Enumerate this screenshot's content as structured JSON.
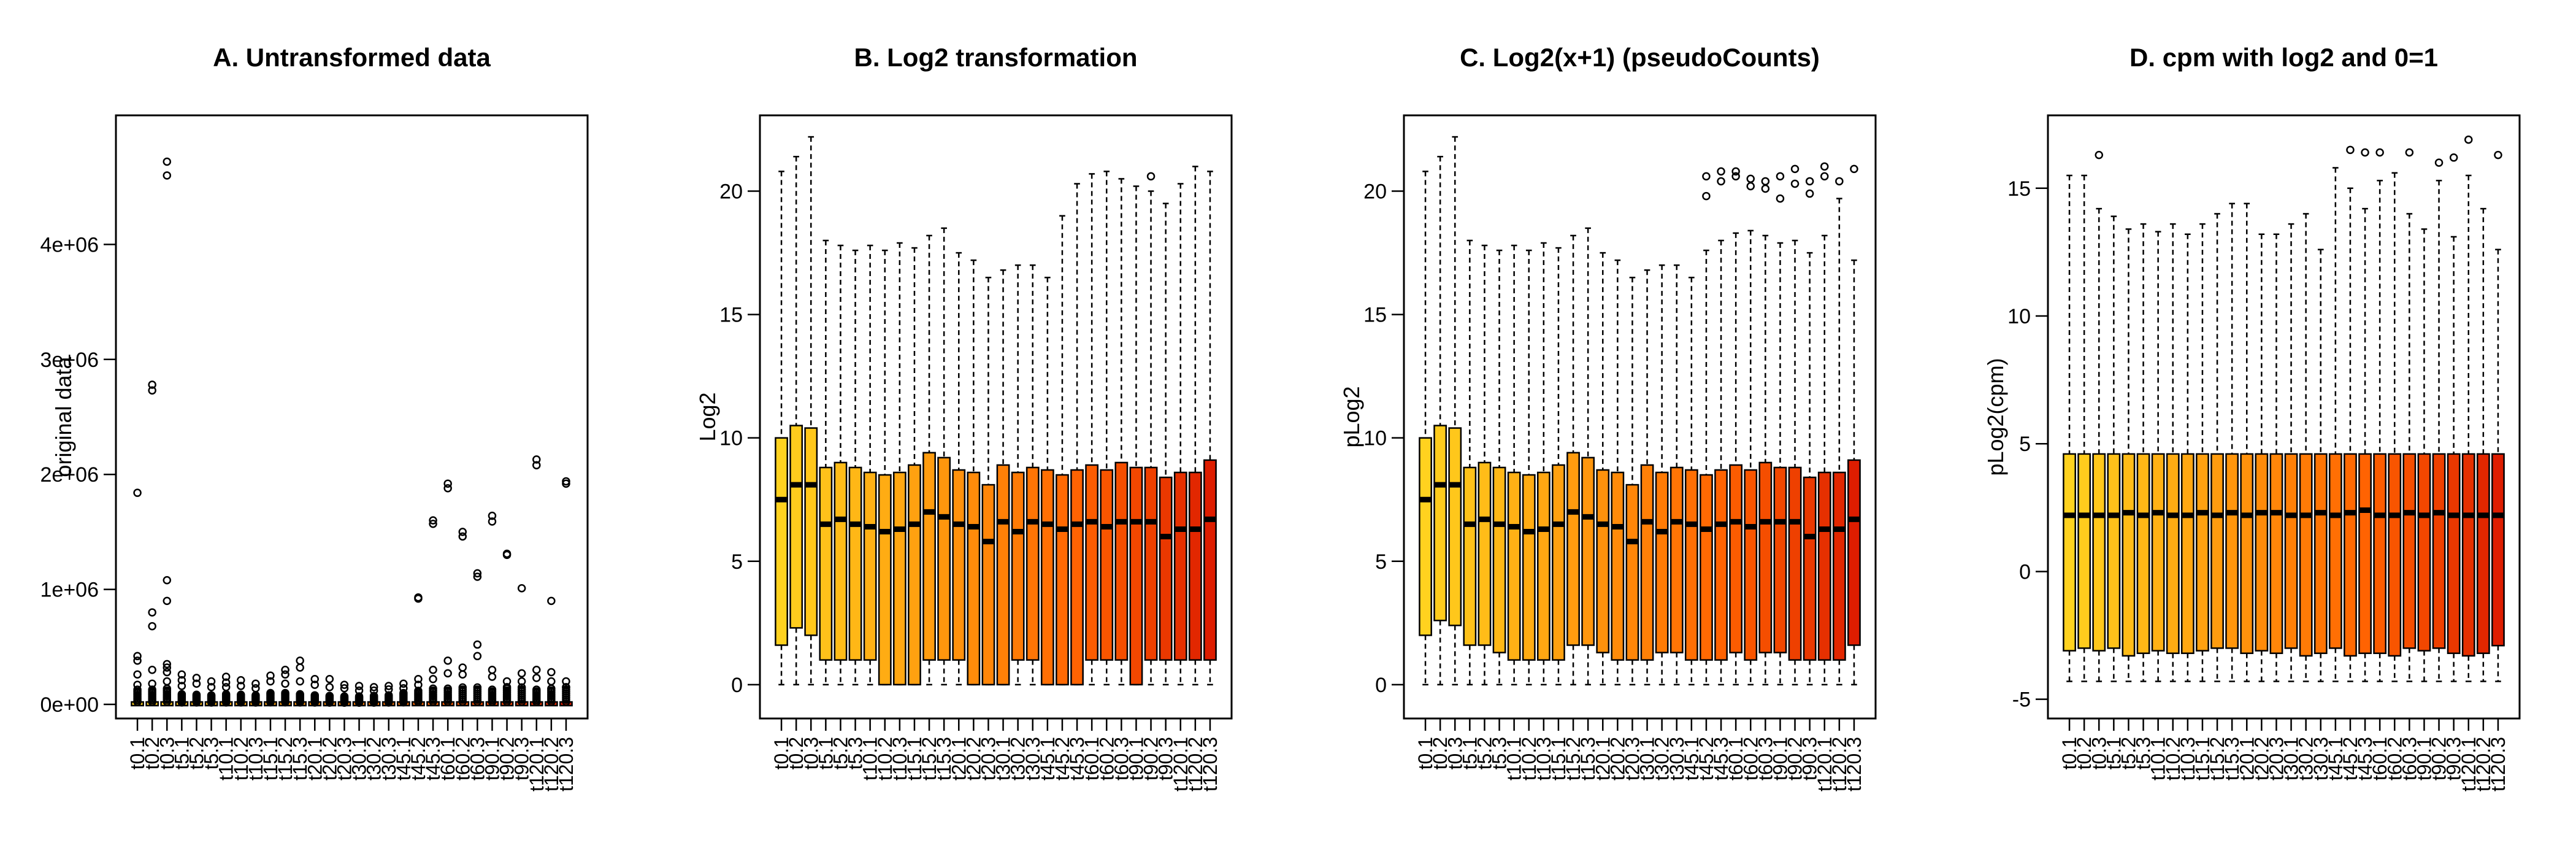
{
  "chart_data": [
    {
      "type": "boxplot",
      "title": "A. Untransformed data",
      "ylabel": "original data",
      "xlabel": "",
      "ylim": [
        0,
        5000000
      ],
      "yticks": [
        0,
        1000000,
        2000000,
        3000000,
        4000000
      ],
      "ytick_labels": [
        "0e+00",
        "1e+06",
        "2e+06",
        "3e+06",
        "4e+06"
      ],
      "categories": [
        "t0.1",
        "t0.2",
        "t0.3",
        "t5.1",
        "t5.2",
        "t5.3",
        "t10.1",
        "t10.2",
        "t10.3",
        "t15.1",
        "t15.2",
        "t15.3",
        "t20.1",
        "t20.2",
        "t20.3",
        "t30.1",
        "t30.2",
        "t30.3",
        "t45.1",
        "t45.2",
        "t45.3",
        "t60.1",
        "t60.2",
        "t60.3",
        "t90.1",
        "t90.2",
        "t90.3",
        "t120.1",
        "t120.2",
        "t120.3"
      ],
      "whisker_max": [
        130000,
        130000,
        140000,
        90000,
        85000,
        80000,
        90000,
        85000,
        80000,
        100000,
        100000,
        90000,
        80000,
        75000,
        70000,
        70000,
        75000,
        80000,
        100000,
        120000,
        140000,
        140000,
        150000,
        150000,
        130000,
        140000,
        150000,
        130000,
        140000,
        150000
      ],
      "outliers": [
        [
          1840000,
          420000,
          380000,
          260000,
          170000
        ],
        [
          2780000,
          2730000,
          800000,
          680000,
          300000,
          180000
        ],
        [
          4720000,
          4600000,
          1080000,
          900000,
          350000,
          320000,
          280000,
          200000
        ],
        [
          260000,
          210000,
          160000
        ],
        [
          230000,
          180000
        ],
        [
          200000,
          150000
        ],
        [
          240000,
          190000,
          150000
        ],
        [
          210000,
          160000
        ],
        [
          180000,
          140000
        ],
        [
          250000,
          200000
        ],
        [
          300000,
          260000,
          180000
        ],
        [
          380000,
          320000,
          200000
        ],
        [
          220000,
          170000
        ],
        [
          220000,
          150000
        ],
        [
          170000,
          140000
        ],
        [
          160000,
          120000
        ],
        [
          150000,
          120000
        ],
        [
          160000,
          130000
        ],
        [
          180000,
          140000
        ],
        [
          930000,
          920000,
          220000,
          170000
        ],
        [
          1600000,
          1570000,
          300000,
          220000
        ],
        [
          1920000,
          1880000,
          380000,
          270000
        ],
        [
          1500000,
          1460000,
          320000,
          260000
        ],
        [
          1140000,
          1110000,
          520000,
          420000
        ],
        [
          1640000,
          1590000,
          300000,
          240000
        ],
        [
          1310000,
          1300000,
          200000,
          150000
        ],
        [
          1010000,
          270000,
          200000
        ],
        [
          2130000,
          2080000,
          300000,
          230000
        ],
        [
          900000,
          280000,
          200000
        ],
        [
          1940000,
          1920000,
          200000,
          150000
        ]
      ]
    },
    {
      "type": "boxplot",
      "title": "B. Log2 transformation",
      "ylabel": "Log2",
      "xlabel": "",
      "ylim": [
        -0.8,
        22.5
      ],
      "yticks": [
        0,
        5,
        10,
        15,
        20
      ],
      "ytick_labels": [
        "0",
        "5",
        "10",
        "15",
        "20"
      ],
      "categories": [
        "t0.1",
        "t0.2",
        "t0.3",
        "t5.1",
        "t5.2",
        "t5.3",
        "t10.1",
        "t10.2",
        "t10.3",
        "t15.1",
        "t15.2",
        "t15.3",
        "t20.1",
        "t20.2",
        "t20.3",
        "t30.1",
        "t30.2",
        "t30.3",
        "t45.1",
        "t45.2",
        "t45.3",
        "t60.1",
        "t60.2",
        "t60.3",
        "t90.1",
        "t90.2",
        "t90.3",
        "t120.1",
        "t120.2",
        "t120.3"
      ],
      "whisker_low": [
        0,
        0,
        0,
        0,
        0,
        0,
        0,
        0,
        0,
        0,
        0,
        0,
        0,
        0,
        0,
        0,
        0,
        0,
        0,
        0,
        0,
        0,
        0,
        0,
        0,
        0,
        0,
        0,
        0,
        0
      ],
      "q1": [
        1.6,
        2.3,
        2.0,
        1.0,
        1.0,
        1.0,
        1.0,
        0,
        0,
        0,
        1.0,
        1.0,
        1.0,
        0,
        0,
        0,
        1.0,
        1.0,
        0,
        0,
        0,
        1.0,
        1.0,
        1.0,
        0,
        1.0,
        1.0,
        1.0,
        1.0,
        1.0
      ],
      "median": [
        7.5,
        8.1,
        8.1,
        6.5,
        6.7,
        6.5,
        6.4,
        6.2,
        6.3,
        6.5,
        7.0,
        6.8,
        6.5,
        6.4,
        5.8,
        6.6,
        6.2,
        6.6,
        6.5,
        6.3,
        6.5,
        6.6,
        6.4,
        6.6,
        6.6,
        6.6,
        6.0,
        6.3,
        6.3,
        6.7
      ],
      "q3": [
        10.0,
        10.5,
        10.4,
        8.8,
        9.0,
        8.8,
        8.6,
        8.5,
        8.6,
        8.9,
        9.4,
        9.2,
        8.7,
        8.6,
        8.1,
        8.9,
        8.6,
        8.8,
        8.7,
        8.5,
        8.7,
        8.9,
        8.7,
        9.0,
        8.8,
        8.8,
        8.4,
        8.6,
        8.6,
        9.1
      ],
      "whisker_high": [
        20.8,
        21.4,
        22.2,
        18.0,
        17.8,
        17.6,
        17.8,
        17.6,
        17.9,
        17.7,
        18.2,
        18.5,
        17.5,
        17.2,
        16.5,
        16.8,
        17.0,
        17.0,
        16.5,
        19.0,
        20.3,
        20.7,
        20.8,
        20.5,
        20.2,
        20.0,
        19.5,
        20.3,
        21.0,
        20.8
      ],
      "outliers": [
        [],
        [],
        [],
        [],
        [],
        [],
        [],
        [],
        [],
        [],
        [],
        [],
        [],
        [],
        [],
        [],
        [],
        [],
        [],
        [],
        [],
        [],
        [],
        [],
        [],
        [
          20.6
        ],
        [],
        [],
        [],
        []
      ]
    },
    {
      "type": "boxplot",
      "title": "C. Log2(x+1) (pseudoCounts)",
      "ylabel": "pLog2",
      "xlabel": "",
      "ylim": [
        -0.8,
        22.5
      ],
      "yticks": [
        0,
        5,
        10,
        15,
        20
      ],
      "ytick_labels": [
        "0",
        "5",
        "10",
        "15",
        "20"
      ],
      "categories": [
        "t0.1",
        "t0.2",
        "t0.3",
        "t5.1",
        "t5.2",
        "t5.3",
        "t10.1",
        "t10.2",
        "t10.3",
        "t15.1",
        "t15.2",
        "t15.3",
        "t20.1",
        "t20.2",
        "t20.3",
        "t30.1",
        "t30.2",
        "t30.3",
        "t45.1",
        "t45.2",
        "t45.3",
        "t60.1",
        "t60.2",
        "t60.3",
        "t90.1",
        "t90.2",
        "t90.3",
        "t120.1",
        "t120.2",
        "t120.3"
      ],
      "whisker_low": [
        0,
        0,
        0,
        0,
        0,
        0,
        0,
        0,
        0,
        0,
        0,
        0,
        0,
        0,
        0,
        0,
        0,
        0,
        0,
        0,
        0,
        0,
        0,
        0,
        0,
        0,
        0,
        0,
        0,
        0
      ],
      "q1": [
        2.0,
        2.6,
        2.4,
        1.6,
        1.6,
        1.3,
        1.0,
        1.0,
        1.0,
        1.0,
        1.6,
        1.6,
        1.3,
        1.0,
        1.0,
        1.0,
        1.3,
        1.3,
        1.0,
        1.0,
        1.0,
        1.3,
        1.0,
        1.3,
        1.3,
        1.0,
        1.0,
        1.0,
        1.0,
        1.6
      ],
      "median": [
        7.5,
        8.1,
        8.1,
        6.5,
        6.7,
        6.5,
        6.4,
        6.2,
        6.3,
        6.5,
        7.0,
        6.8,
        6.5,
        6.4,
        5.8,
        6.6,
        6.2,
        6.6,
        6.5,
        6.3,
        6.5,
        6.6,
        6.4,
        6.6,
        6.6,
        6.6,
        6.0,
        6.3,
        6.3,
        6.7
      ],
      "q3": [
        10.0,
        10.5,
        10.4,
        8.8,
        9.0,
        8.8,
        8.6,
        8.5,
        8.6,
        8.9,
        9.4,
        9.2,
        8.7,
        8.6,
        8.1,
        8.9,
        8.6,
        8.8,
        8.7,
        8.5,
        8.7,
        8.9,
        8.7,
        9.0,
        8.8,
        8.8,
        8.4,
        8.6,
        8.6,
        9.1
      ],
      "whisker_high": [
        20.8,
        21.4,
        22.2,
        18.0,
        17.8,
        17.6,
        17.8,
        17.6,
        17.9,
        17.7,
        18.2,
        18.5,
        17.5,
        17.2,
        16.5,
        16.8,
        17.0,
        17.0,
        16.5,
        17.6,
        18.0,
        18.3,
        18.4,
        18.2,
        17.9,
        18.0,
        17.5,
        18.2,
        19.7,
        17.2
      ],
      "outliers": [
        [],
        [],
        [],
        [],
        [],
        [],
        [],
        [],
        [],
        [],
        [],
        [],
        [],
        [],
        [],
        [],
        [],
        [],
        [],
        [
          19.8,
          20.6
        ],
        [
          20.8,
          20.4
        ],
        [
          20.8,
          20.6
        ],
        [
          20.2,
          20.5
        ],
        [
          20.1,
          20.4
        ],
        [
          20.6,
          19.7
        ],
        [
          20.9,
          20.3
        ],
        [
          19.9,
          20.4
        ],
        [
          21.0,
          20.6
        ],
        [
          20.4
        ],
        [
          20.9
        ]
      ]
    },
    {
      "type": "boxplot",
      "title": "D. cpm with log2 and 0=1",
      "ylabel": "pLog2(cpm)",
      "xlabel": "",
      "ylim": [
        -5.2,
        17.3
      ],
      "yticks": [
        -5,
        0,
        5,
        10,
        15
      ],
      "ytick_labels": [
        "-5",
        "0",
        "5",
        "10",
        "15"
      ],
      "categories": [
        "t0.1",
        "t0.2",
        "t0.3",
        "t5.1",
        "t5.2",
        "t5.3",
        "t10.1",
        "t10.2",
        "t10.3",
        "t15.1",
        "t15.2",
        "t15.3",
        "t20.1",
        "t20.2",
        "t20.3",
        "t30.1",
        "t30.2",
        "t30.3",
        "t45.1",
        "t45.2",
        "t45.3",
        "t60.1",
        "t60.2",
        "t60.3",
        "t90.1",
        "t90.2",
        "t90.3",
        "t120.1",
        "t120.2",
        "t120.3"
      ],
      "whisker_low": [
        -4.3,
        -4.3,
        -4.3,
        -4.3,
        -4.3,
        -4.3,
        -4.3,
        -4.3,
        -4.3,
        -4.3,
        -4.3,
        -4.3,
        -4.3,
        -4.3,
        -4.3,
        -4.3,
        -4.3,
        -4.3,
        -4.3,
        -4.3,
        -4.3,
        -4.3,
        -4.3,
        -4.3,
        -4.3,
        -4.3,
        -4.3,
        -4.3,
        -4.3,
        -4.3
      ],
      "q1": [
        -3.1,
        -3.0,
        -3.1,
        -3.0,
        -3.3,
        -3.2,
        -3.1,
        -3.2,
        -3.2,
        -3.1,
        -3.0,
        -3.0,
        -3.2,
        -3.1,
        -3.2,
        -3.0,
        -3.3,
        -3.2,
        -3.0,
        -3.3,
        -3.2,
        -3.2,
        -3.3,
        -3.0,
        -3.1,
        -3.0,
        -3.2,
        -3.3,
        -3.2,
        -2.9
      ],
      "median": [
        2.2,
        2.2,
        2.2,
        2.2,
        2.3,
        2.2,
        2.3,
        2.2,
        2.2,
        2.3,
        2.2,
        2.3,
        2.2,
        2.3,
        2.3,
        2.2,
        2.2,
        2.3,
        2.2,
        2.3,
        2.4,
        2.2,
        2.2,
        2.3,
        2.2,
        2.3,
        2.2,
        2.2,
        2.2,
        2.2
      ],
      "q3": [
        4.6,
        4.6,
        4.6,
        4.6,
        4.6,
        4.6,
        4.6,
        4.6,
        4.6,
        4.6,
        4.6,
        4.6,
        4.6,
        4.6,
        4.6,
        4.6,
        4.6,
        4.6,
        4.6,
        4.6,
        4.6,
        4.6,
        4.6,
        4.6,
        4.6,
        4.6,
        4.6,
        4.6,
        4.6,
        4.6
      ],
      "whisker_high": [
        15.5,
        15.5,
        14.2,
        13.9,
        13.4,
        13.6,
        13.3,
        13.6,
        13.2,
        13.6,
        14.0,
        14.4,
        14.4,
        13.2,
        13.2,
        13.6,
        14.0,
        12.6,
        15.8,
        15.0,
        14.2,
        15.3,
        15.6,
        14.0,
        13.4,
        15.3,
        13.1,
        15.5,
        14.2,
        12.6
      ],
      "outliers": [
        [],
        [],
        [
          16.3
        ],
        [],
        [],
        [],
        [],
        [],
        [],
        [],
        [],
        [],
        [],
        [],
        [],
        [],
        [],
        [],
        [],
        [
          16.5
        ],
        [
          16.4
        ],
        [
          16.4
        ],
        [],
        [
          16.4
        ],
        [],
        [
          16.0
        ],
        [
          16.2
        ],
        [
          16.9
        ],
        [],
        [
          16.3
        ]
      ]
    }
  ]
}
